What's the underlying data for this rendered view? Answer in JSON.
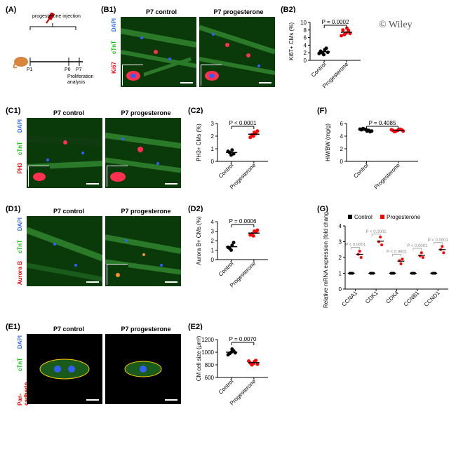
{
  "watermark": "© Wiley",
  "panelA": {
    "label": "(A)",
    "injection_label": "progesterone injection",
    "tp": [
      "P1",
      "P6",
      "P7"
    ],
    "analysis": "Proliferation\nanalysis"
  },
  "panelB": {
    "label_img": "(B1)",
    "label_plot": "(B2)",
    "titles": [
      "P7 control",
      "P7 progesterone"
    ],
    "stains": [
      "Ki67",
      "cTnT",
      "DAPI"
    ],
    "plot": {
      "ylabel": "Ki67+ CMs (%)",
      "xcats": [
        "Control",
        "Progesterone"
      ],
      "ylim": [
        0,
        10
      ],
      "yticks": [
        0,
        2,
        4,
        6,
        8,
        10
      ],
      "control": [
        1.5,
        2.8,
        2.0,
        3.2,
        2.4,
        2.1,
        1.8
      ],
      "treated": [
        7.2,
        8.5,
        6.8,
        7.9,
        8.0,
        7.1,
        6.5
      ],
      "pvalue": "P = 0.0002",
      "ctrl_color": "#000000",
      "trt_color": "#ff0000"
    }
  },
  "panelC": {
    "label_img": "(C1)",
    "label_plot": "(C2)",
    "titles": [
      "P7 control",
      "P7 progesterone"
    ],
    "stains": [
      "PH3",
      "cTnT",
      "DAPI"
    ],
    "plot": {
      "ylabel": "PH3+ CMs (%)",
      "xcats": [
        "Control",
        "Progesterone"
      ],
      "ylim": [
        0,
        3
      ],
      "yticks": [
        0,
        1,
        2,
        3
      ],
      "control": [
        0.5,
        0.9,
        0.7,
        0.6,
        0.8
      ],
      "treated": [
        2.0,
        2.3,
        2.1,
        2.2,
        1.9,
        2.4
      ],
      "pvalue": "P < 0.0001",
      "ctrl_color": "#000000",
      "trt_color": "#ff0000"
    }
  },
  "panelD": {
    "label_img": "(D1)",
    "label_plot": "(D2)",
    "titles": [
      "P7 control",
      "P7 progesterone"
    ],
    "stains": [
      "Aurora B",
      "cTnT",
      "DAPI"
    ],
    "plot": {
      "ylabel": "Aurora B+ CMs (%)",
      "xcats": [
        "Control",
        "Progesterone"
      ],
      "ylim": [
        0,
        4
      ],
      "yticks": [
        0,
        1,
        2,
        3,
        4
      ],
      "control": [
        1.0,
        1.5,
        1.2,
        1.8,
        1.3
      ],
      "treated": [
        2.5,
        3.0,
        2.7,
        2.9,
        2.6,
        3.1
      ],
      "pvalue": "P = 0.0006",
      "ctrl_color": "#000000",
      "trt_color": "#ff0000"
    }
  },
  "panelE": {
    "label_img": "(E1)",
    "label_plot": "(E2)",
    "titles": [
      "P7 control",
      "P7 progesterone"
    ],
    "stains": [
      "Pan-cadherin",
      "cTnT",
      "DAPI"
    ],
    "plot": {
      "ylabel": "CM cell size (μm²)",
      "xcats": [
        "Control",
        "Progesterone"
      ],
      "ylim": [
        600,
        1200
      ],
      "yticks": [
        600,
        800,
        1000,
        1200
      ],
      "control": [
        1000,
        1050,
        980,
        1020,
        960,
        990
      ],
      "treated": [
        820,
        850,
        800,
        870,
        830,
        810,
        860
      ],
      "pvalue": "P = 0.0070",
      "ctrl_color": "#000000",
      "trt_color": "#ff0000"
    }
  },
  "panelF": {
    "label": "(F)",
    "plot": {
      "ylabel": "HW/BW (mg/g)",
      "xcats": [
        "Control",
        "Progesterone"
      ],
      "ylim": [
        0,
        6
      ],
      "yticks": [
        0,
        2,
        4,
        6
      ],
      "control": [
        5.0,
        4.8,
        5.1,
        4.9,
        5.2,
        4.7,
        5.0,
        4.8,
        5.1
      ],
      "treated": [
        4.9,
        5.0,
        4.8,
        5.1,
        4.7,
        5.0,
        4.9,
        4.8,
        5.0
      ],
      "pvalue": "P = 0.4085",
      "ctrl_color": "#000000",
      "trt_color": "#ff0000"
    }
  },
  "panelG": {
    "label": "(G)",
    "ylabel": "Relative mRNA expression\n(fold change)",
    "legend": [
      "Control",
      "Progesterone"
    ],
    "genes": [
      "CCNA1",
      "CDK1",
      "CDK4",
      "CCNB1",
      "CCND1"
    ],
    "ylim": [
      0,
      4
    ],
    "yticks": [
      0,
      1,
      2,
      3,
      4
    ],
    "control_vals": [
      [
        1.0,
        1.0,
        1.0
      ],
      [
        1.0,
        1.0,
        1.0
      ],
      [
        1.0,
        1.0,
        1.0
      ],
      [
        1.0,
        1.0,
        1.0
      ],
      [
        1.0,
        1.0,
        1.0
      ]
    ],
    "treated_vals": [
      [
        2.2,
        2.4,
        2.0
      ],
      [
        3.0,
        3.3,
        2.8
      ],
      [
        1.8,
        1.6,
        1.9
      ],
      [
        2.1,
        2.3,
        2.0
      ],
      [
        2.5,
        2.7,
        2.3
      ]
    ],
    "pvalues": [
      "P < 0.0001",
      "P < 0.0001",
      "P < 0.0001",
      "P < 0.0001",
      "P < 0.0001"
    ],
    "ctrl_color": "#000000",
    "trt_color": "#ff0000"
  },
  "micro_bg": {
    "green": "#1a5c1a",
    "blue": "#1030a0",
    "red": "#cc0020"
  }
}
